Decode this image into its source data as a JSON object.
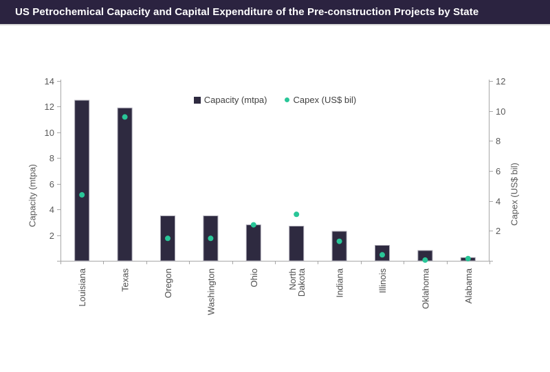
{
  "title_bar": {
    "title": "US Petrochemical Capacity and Capital Expenditure of the Pre-construction Projects by State"
  },
  "legend": {
    "items": [
      {
        "label": "Capacity (mtpa)",
        "marker": "square"
      },
      {
        "label": "Capex (US$ bil)",
        "marker": "circle"
      }
    ]
  },
  "colors": {
    "title_bar_bg": "#2b2340",
    "bar_fill": "#2e2a40",
    "bar_border": "#a8a6b2",
    "capex_dot": "#29c698",
    "axis_line": "#a6a6a6",
    "y_tick_text": "#595959",
    "x_tick_text": "#4d4d4d",
    "axis_title_text": "#595959",
    "legend_text": "#404040"
  },
  "chart_data": {
    "type": "bar",
    "title": "US Petrochemical Capacity and Capital Expenditure of the Pre-construction Projects by State",
    "categories": [
      "Louisiana",
      "Texas",
      "Oregon",
      "Washington",
      "Ohio",
      "North Dakota",
      "Indiana",
      "Illinois",
      "Oklahoma",
      "Alabama"
    ],
    "series": [
      {
        "name": "Capacity (mtpa)",
        "type": "bar",
        "axis": "left",
        "values": [
          12.5,
          11.9,
          3.5,
          3.5,
          2.8,
          2.7,
          2.3,
          1.2,
          0.8,
          0.25
        ]
      },
      {
        "name": "Capex (US$ bil)",
        "type": "scatter",
        "axis": "right",
        "values": [
          4.4,
          9.6,
          1.5,
          1.5,
          2.4,
          3.1,
          1.3,
          0.4,
          0.05,
          0.15
        ]
      }
    ],
    "ylabel_left": "Capacity (mtpa)",
    "ylabel_right": "Capex (US$ bil)",
    "ylim_left": [
      0,
      14
    ],
    "ylim_right": [
      0,
      12
    ],
    "yticks_left": [
      2,
      4,
      6,
      8,
      10,
      12,
      14
    ],
    "yticks_right": [
      2,
      4,
      6,
      8,
      10,
      12
    ],
    "grid": false,
    "legend_position": "top-center"
  }
}
